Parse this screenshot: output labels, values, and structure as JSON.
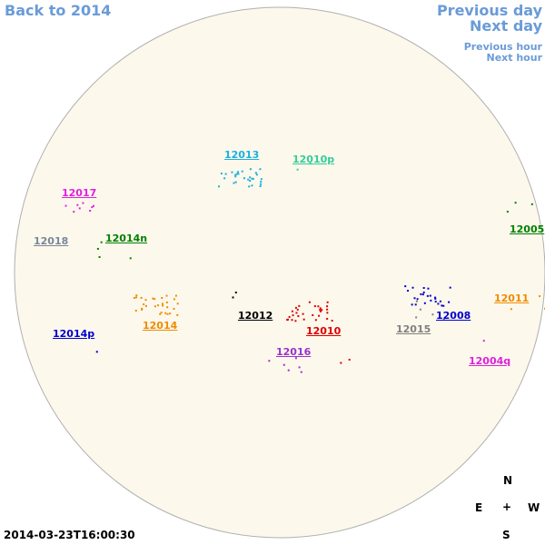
{
  "header": {
    "back": "Back to 2014",
    "previous_day": "Previous day",
    "next_day": "Next day",
    "previous_hour": "Previous hour",
    "next_hour": "Next hour"
  },
  "regions": [
    "12013",
    "12010p",
    "12017",
    "12018",
    "12014n",
    "12005",
    "12011",
    "12012",
    "12010",
    "12014",
    "12008",
    "12015",
    "12014p",
    "12016",
    "12004q"
  ],
  "compass": {
    "north": "N",
    "east": "E",
    "center": "+",
    "west": "W",
    "south": "S"
  },
  "timestamp": "2014-03-23T16:00:30"
}
